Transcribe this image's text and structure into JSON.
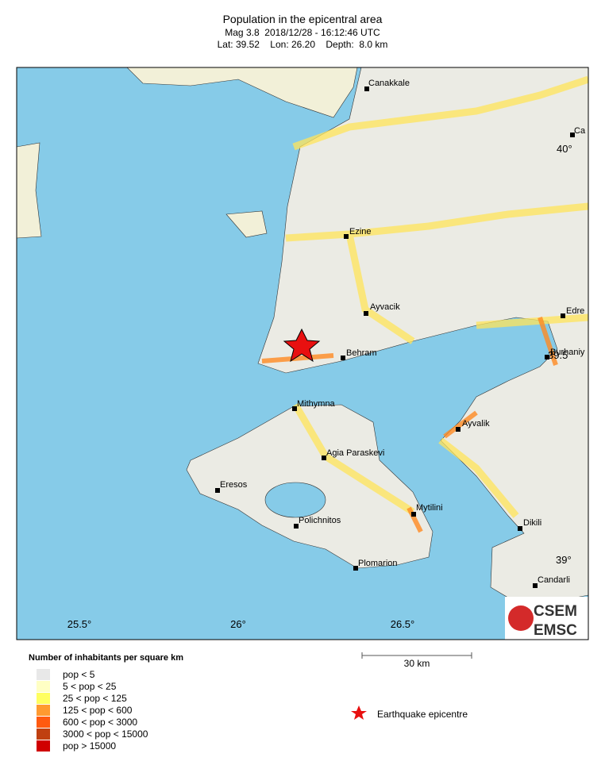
{
  "header": {
    "title": "Population in the epicentral area",
    "event": "Mag 3.8  2018/12/28 - 16:12:46 UTC",
    "location": "Lat: 39.52    Lon: 26.20    Depth:  8.0 km"
  },
  "map": {
    "lon_labels": [
      "25.5°",
      "26°",
      "26.5°"
    ],
    "lat_labels": [
      "40°",
      "39.5",
      "39°"
    ],
    "cities": [
      "Canakkale",
      "Ca",
      "Ezine",
      "Ayvacik",
      "Behram",
      "Edre",
      "Burhaniy",
      "Mithymna",
      "Agia Paraskevi",
      "Ayvalik",
      "Eresos",
      "Mytilini",
      "Polichnitos",
      "Dikili",
      "Plomarion",
      "Candarli"
    ]
  },
  "logo": {
    "top": "CSEM",
    "bottom": "EMSC"
  },
  "legend": {
    "title": "Number of inhabitants per square km",
    "items": [
      "pop < 5",
      "5 < pop < 25",
      "25 < pop < 125",
      "125 < pop < 600",
      "600 < pop < 3000",
      "3000 < pop < 15000",
      "pop > 15000"
    ]
  },
  "scale": {
    "label": "30 km"
  },
  "epicentre_label": "Earthquake epicentre"
}
